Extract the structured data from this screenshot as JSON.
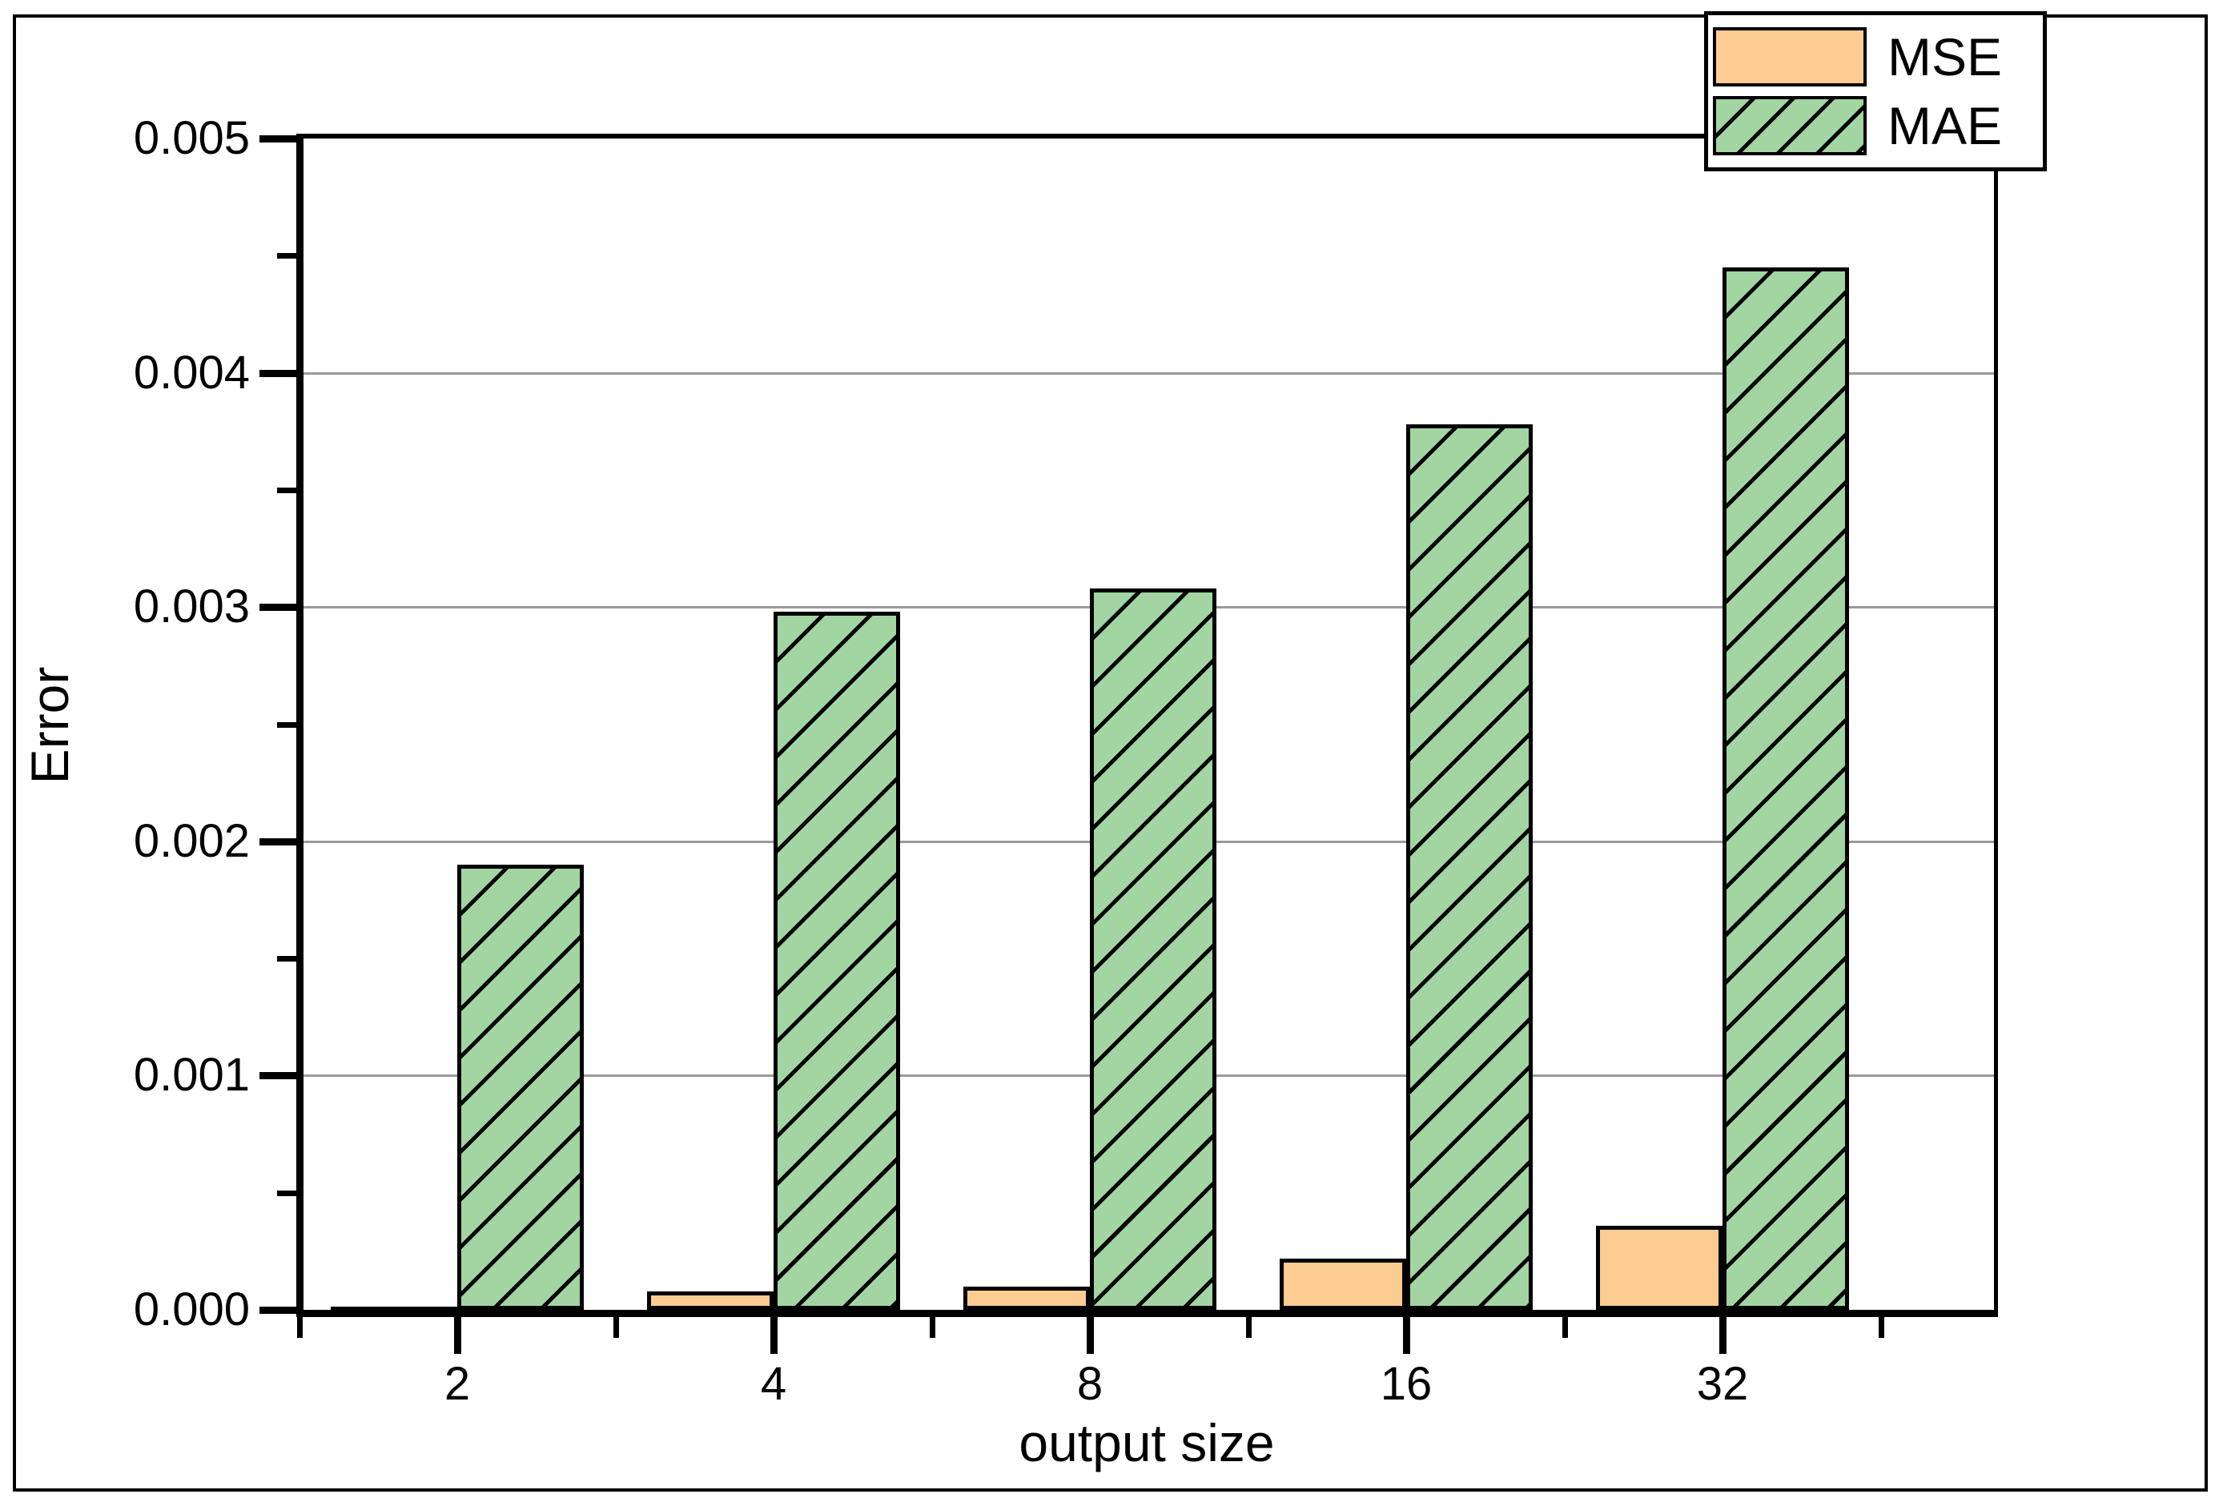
{
  "figure": {
    "background": "#ffffff",
    "border_color": "#000000"
  },
  "chart_data": {
    "type": "bar",
    "title": "",
    "xlabel": "output size",
    "ylabel": "Error",
    "categories": [
      "2",
      "4",
      "8",
      "16",
      "32"
    ],
    "series": [
      {
        "name": "MSE",
        "color": "#fdcc92",
        "hatch": "none",
        "values": [
          1e-05,
          8e-05,
          0.0001,
          0.00022,
          0.00036
        ]
      },
      {
        "name": "MAE",
        "color": "#a2d5a2",
        "hatch": "diagonal",
        "values": [
          0.0019,
          0.00298,
          0.00308,
          0.00378,
          0.00445
        ]
      }
    ],
    "ylim": [
      0,
      0.005
    ],
    "yticks": [
      "0.000",
      "0.001",
      "0.002",
      "0.003",
      "0.004",
      "0.005"
    ],
    "x_minor_ticks_between_categories": true,
    "grid": true,
    "gridline_color": "#9a9a9a",
    "bar_edge_color": "#000000",
    "legend": {
      "position": "top-right",
      "entries": [
        "MSE",
        "MAE"
      ]
    }
  }
}
